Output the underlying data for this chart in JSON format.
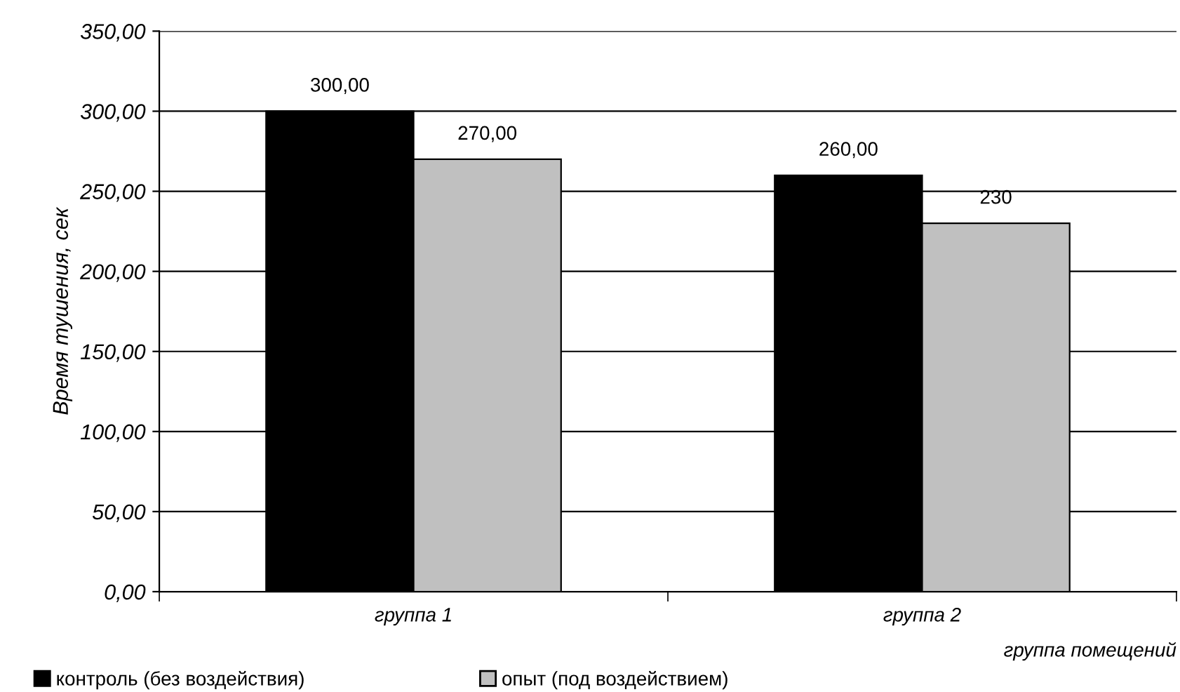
{
  "chart_data": {
    "type": "bar",
    "categories": [
      "группа 1",
      "группа 2"
    ],
    "series": [
      {
        "name": "контроль (без воздействия)",
        "color": "#000000",
        "values": [
          300,
          260
        ],
        "value_labels": [
          "300,00",
          "260,00"
        ]
      },
      {
        "name": "опыт (под воздействием)",
        "color": "#c0c0c0",
        "values": [
          270,
          230
        ],
        "value_labels": [
          "270,00",
          "230"
        ]
      }
    ],
    "xlabel": "группа помещений",
    "ylabel": "Время тушения, сек",
    "ylim": [
      0,
      350
    ],
    "yticks": [
      {
        "value": 0,
        "label": "0,00"
      },
      {
        "value": 50,
        "label": "50,00"
      },
      {
        "value": 100,
        "label": "100,00"
      },
      {
        "value": 150,
        "label": "150,00"
      },
      {
        "value": 200,
        "label": "200,00"
      },
      {
        "value": 250,
        "label": "250,00"
      },
      {
        "value": 300,
        "label": "300,00"
      },
      {
        "value": 350,
        "label": "350,00"
      }
    ],
    "grid": "y",
    "legend": "bottom left"
  }
}
